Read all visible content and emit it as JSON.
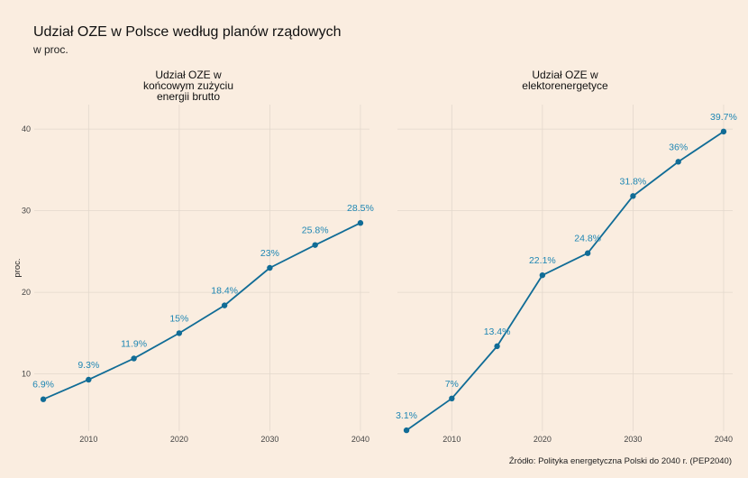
{
  "title": "Udział OZE w Polsce według planów rządowych",
  "subtitle": "w proc.",
  "source": "Źródło: Polityka energetyczna Polski do 2040 r. (PEP2040)",
  "colors": {
    "line": "#106C96",
    "label": "#1E86B3",
    "background": "#FAEDE0",
    "grid": "#E3D8CC"
  },
  "chart_data": {
    "type": "line",
    "ylabel": "proc.",
    "ylim": [
      3,
      43
    ],
    "yticks": [
      10,
      20,
      30,
      40
    ],
    "xlim": [
      2004,
      2041
    ],
    "xticks": [
      2010,
      2020,
      2030,
      2040
    ],
    "grid": true,
    "legend": "none",
    "panels": [
      {
        "title_lines": [
          "Udział OZE w",
          "końcowym zużyciu",
          "energii brutto"
        ],
        "x": [
          2005,
          2010,
          2015,
          2020,
          2025,
          2030,
          2035,
          2040
        ],
        "values": [
          6.9,
          9.3,
          11.9,
          15,
          18.4,
          23,
          25.8,
          28.5
        ],
        "labels": [
          "6.9%",
          "9.3%",
          "11.9%",
          "15%",
          "18.4%",
          "23%",
          "25.8%",
          "28.5%"
        ]
      },
      {
        "title_lines": [
          "Udział OZE w",
          "elektorenergetyce"
        ],
        "x": [
          2005,
          2010,
          2015,
          2020,
          2025,
          2030,
          2035,
          2040
        ],
        "values": [
          3.1,
          7,
          13.4,
          22.1,
          24.8,
          31.8,
          36,
          39.7
        ],
        "labels": [
          "3.1%",
          "7%",
          "13.4%",
          "22.1%",
          "24.8%",
          "31.8%",
          "36%",
          "39.7%"
        ]
      }
    ]
  }
}
